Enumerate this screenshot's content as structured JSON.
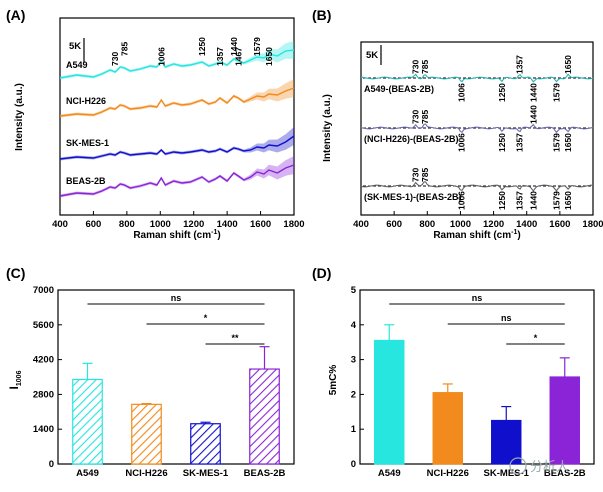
{
  "figure": {
    "watermark": "分析人",
    "colors": {
      "A549": "#27e6e0",
      "NCI-H226": "#f28a1d",
      "SK-MES-1": "#1010cc",
      "BEAS-2B": "#8a24d6"
    }
  },
  "chart_data": [
    {
      "panel": "(A)",
      "type": "line",
      "xlabel": "Raman shift (cm",
      "xlabel_sup": "-1",
      "ylabel": "Intensity (a.u.)",
      "xlim": [
        400,
        1800
      ],
      "xticks": [
        "400",
        "600",
        "800",
        "1000",
        "1200",
        "1400",
        "1600",
        "1800"
      ],
      "scalebar": "5K",
      "series": [
        {
          "name": "A549",
          "label": "A549",
          "color": "#27e6e0",
          "offset": 3,
          "x": [
            400,
            500,
            600,
            650,
            700,
            730,
            760,
            785,
            820,
            880,
            940,
            980,
            1006,
            1030,
            1080,
            1130,
            1180,
            1250,
            1290,
            1330,
            1357,
            1400,
            1440,
            1467,
            1500,
            1540,
            1579,
            1620,
            1650,
            1700,
            1750,
            1800
          ],
          "y": [
            0.4,
            0.7,
            0.5,
            0.8,
            1.2,
            1.0,
            1.5,
            1.4,
            1.1,
            1.3,
            1.6,
            1.5,
            2.1,
            1.5,
            1.8,
            1.6,
            1.7,
            2.0,
            1.6,
            1.8,
            2.0,
            1.7,
            2.3,
            2.1,
            1.9,
            2.2,
            2.5,
            2.4,
            2.8,
            2.6,
            3.1,
            3.2
          ]
        },
        {
          "name": "NCI-H226",
          "label": "NCI-H226",
          "color": "#f28a1d",
          "offset": 2,
          "x": [
            400,
            500,
            600,
            650,
            700,
            730,
            760,
            785,
            820,
            880,
            940,
            980,
            1006,
            1030,
            1080,
            1130,
            1180,
            1250,
            1290,
            1330,
            1357,
            1400,
            1440,
            1467,
            1500,
            1540,
            1579,
            1620,
            1650,
            1700,
            1750,
            1800
          ],
          "y": [
            0.2,
            0.4,
            0.3,
            0.6,
            1.0,
            0.9,
            1.3,
            1.2,
            0.9,
            1.0,
            1.2,
            1.1,
            1.8,
            1.2,
            1.5,
            1.3,
            1.4,
            1.8,
            1.4,
            1.6,
            2.0,
            1.5,
            2.2,
            2.0,
            1.6,
            1.9,
            2.2,
            2.1,
            2.4,
            2.3,
            2.7,
            3.0
          ]
        },
        {
          "name": "SK-MES-1",
          "label": "SK-MES-1",
          "color": "#1010cc",
          "offset": 1,
          "x": [
            400,
            500,
            600,
            650,
            700,
            730,
            760,
            785,
            820,
            880,
            940,
            980,
            1006,
            1030,
            1080,
            1130,
            1180,
            1250,
            1290,
            1330,
            1357,
            1400,
            1440,
            1467,
            1500,
            1540,
            1579,
            1620,
            1650,
            1700,
            1750,
            1800
          ],
          "y": [
            0.1,
            0.3,
            0.2,
            0.4,
            0.6,
            0.5,
            0.8,
            0.7,
            0.5,
            0.6,
            0.7,
            0.6,
            1.0,
            0.6,
            0.8,
            0.7,
            0.8,
            1.0,
            0.8,
            0.9,
            1.1,
            0.8,
            1.2,
            1.1,
            0.9,
            1.0,
            1.3,
            1.2,
            1.5,
            1.4,
            1.8,
            2.4
          ]
        },
        {
          "name": "BEAS-2B",
          "label": "BEAS-2B",
          "color": "#8a24d6",
          "offset": 0,
          "x": [
            400,
            500,
            600,
            650,
            700,
            730,
            760,
            785,
            820,
            880,
            940,
            980,
            1006,
            1030,
            1080,
            1130,
            1180,
            1250,
            1290,
            1330,
            1357,
            1400,
            1440,
            1467,
            1500,
            1540,
            1579,
            1620,
            1650,
            1700,
            1750,
            1800
          ],
          "y": [
            0.2,
            0.5,
            0.4,
            0.7,
            1.1,
            1.0,
            1.4,
            1.3,
            1.0,
            1.2,
            1.5,
            1.3,
            2.0,
            1.3,
            1.7,
            1.5,
            1.6,
            2.1,
            1.6,
            1.9,
            2.2,
            1.7,
            2.5,
            2.2,
            1.8,
            2.1,
            2.6,
            2.4,
            2.8,
            2.5,
            3.0,
            3.3
          ]
        }
      ],
      "peaks": [
        "730",
        "785",
        "1006",
        "1250",
        "1357",
        "1440",
        "1467",
        "1579",
        "1650"
      ]
    },
    {
      "panel": "(B)",
      "type": "line",
      "xlabel": "Raman shift (cm",
      "xlabel_sup": "-1",
      "ylabel": "Intensity (a.u.)",
      "xlim": [
        400,
        1800
      ],
      "xticks": [
        "400",
        "600",
        "800",
        "1000",
        "1200",
        "1400",
        "1600",
        "1800"
      ],
      "scalebar": "5K",
      "series": [
        {
          "name": "A549-(BEAS-2B)",
          "label": "A549-(BEAS-2B)",
          "color": "#27b3b0",
          "offset": 2,
          "peaks_up": [
            "730",
            "785",
            "1357",
            "1650"
          ],
          "peaks_down": [
            "1006",
            "1250",
            "1440",
            "1579"
          ]
        },
        {
          "name": "(NCI-H226)-(BEAS-2B)",
          "label": "(NCI-H226)-(BEAS-2B)",
          "color": "#6a6ab0",
          "offset": 1,
          "peaks_up": [
            "730",
            "785",
            "1440"
          ],
          "peaks_down": [
            "1006",
            "1250",
            "1357",
            "1579",
            "1650"
          ]
        },
        {
          "name": "(SK-MES-1)-(BEAS-2B)",
          "label": "(SK-MES-1)-(BEAS-2B)",
          "color": "#606068",
          "offset": 0,
          "peaks_up": [
            "730",
            "785"
          ],
          "peaks_down": [
            "1006",
            "1250",
            "1357",
            "1440",
            "1579",
            "1650"
          ]
        }
      ]
    },
    {
      "panel": "(C)",
      "type": "bar",
      "ylabel": "I",
      "ylabel_sub": "1006",
      "ylim": [
        0,
        7000
      ],
      "yticks": [
        "0",
        "1400",
        "2800",
        "4200",
        "5600",
        "7000"
      ],
      "categories": [
        "A549",
        "NCI-H226",
        "SK-MES-1",
        "BEAS-2B"
      ],
      "values": [
        3400,
        2400,
        1620,
        3820
      ],
      "errors": [
        650,
        30,
        60,
        900
      ],
      "significance": [
        {
          "from": 0,
          "to": 3,
          "label": "ns"
        },
        {
          "from": 1,
          "to": 3,
          "label": "*"
        },
        {
          "from": 2,
          "to": 3,
          "label": "**"
        }
      ]
    },
    {
      "panel": "(D)",
      "type": "bar",
      "ylabel": "5mC%",
      "ylim": [
        0,
        5
      ],
      "yticks": [
        "0",
        "1",
        "2",
        "3",
        "4",
        "5"
      ],
      "categories": [
        "A549",
        "NCI-H226",
        "SK-MES-1",
        "BEAS-2B"
      ],
      "values": [
        3.55,
        2.05,
        1.25,
        2.5
      ],
      "errors": [
        0.45,
        0.25,
        0.4,
        0.55
      ],
      "significance": [
        {
          "from": 0,
          "to": 3,
          "label": "ns"
        },
        {
          "from": 1,
          "to": 3,
          "label": "ns"
        },
        {
          "from": 2,
          "to": 3,
          "label": "*"
        }
      ]
    }
  ]
}
